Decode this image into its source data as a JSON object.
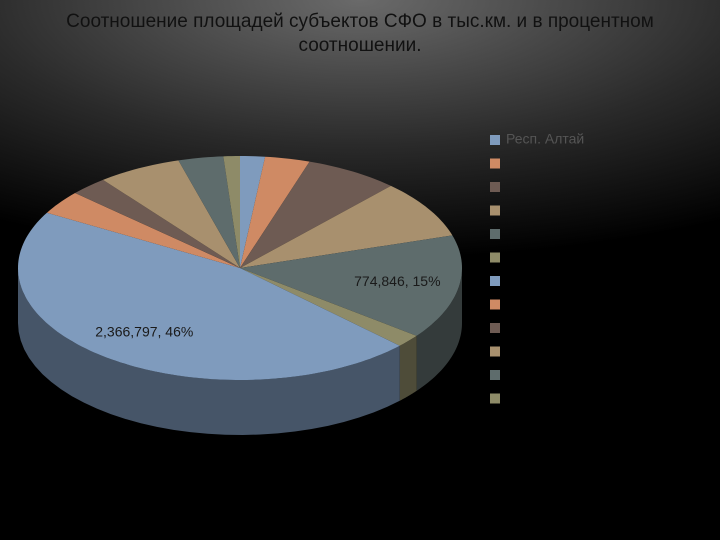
{
  "chart_data": {
    "type": "pie3d",
    "title": "Соотношение площадей субъектов СФО в тыс.км. и в процентном соотношении.",
    "categories": [
      "Респ. Алтай",
      null,
      null,
      null,
      null,
      null,
      null,
      null,
      null,
      null,
      null,
      null
    ],
    "values": [
      92903,
      167996,
      351334,
      431892,
      774846,
      95725,
      2366797,
      177756,
      141140,
      314391,
      168604,
      61569
    ],
    "value_labels": [
      null,
      null,
      null,
      null,
      "774,846, 15%",
      null,
      "2,366,797, 46%",
      null,
      null,
      null,
      null,
      null
    ],
    "colors": [
      "#7f9bbd",
      "#cf8a64",
      "#6e5b53",
      "#a8906e",
      "#5e6c6c",
      "#8e8b68",
      "#7f9bbd",
      "#cf8a64",
      "#6e5b53",
      "#a8906e",
      "#5e6c6c",
      "#8e8b68"
    ],
    "legend": "right"
  }
}
